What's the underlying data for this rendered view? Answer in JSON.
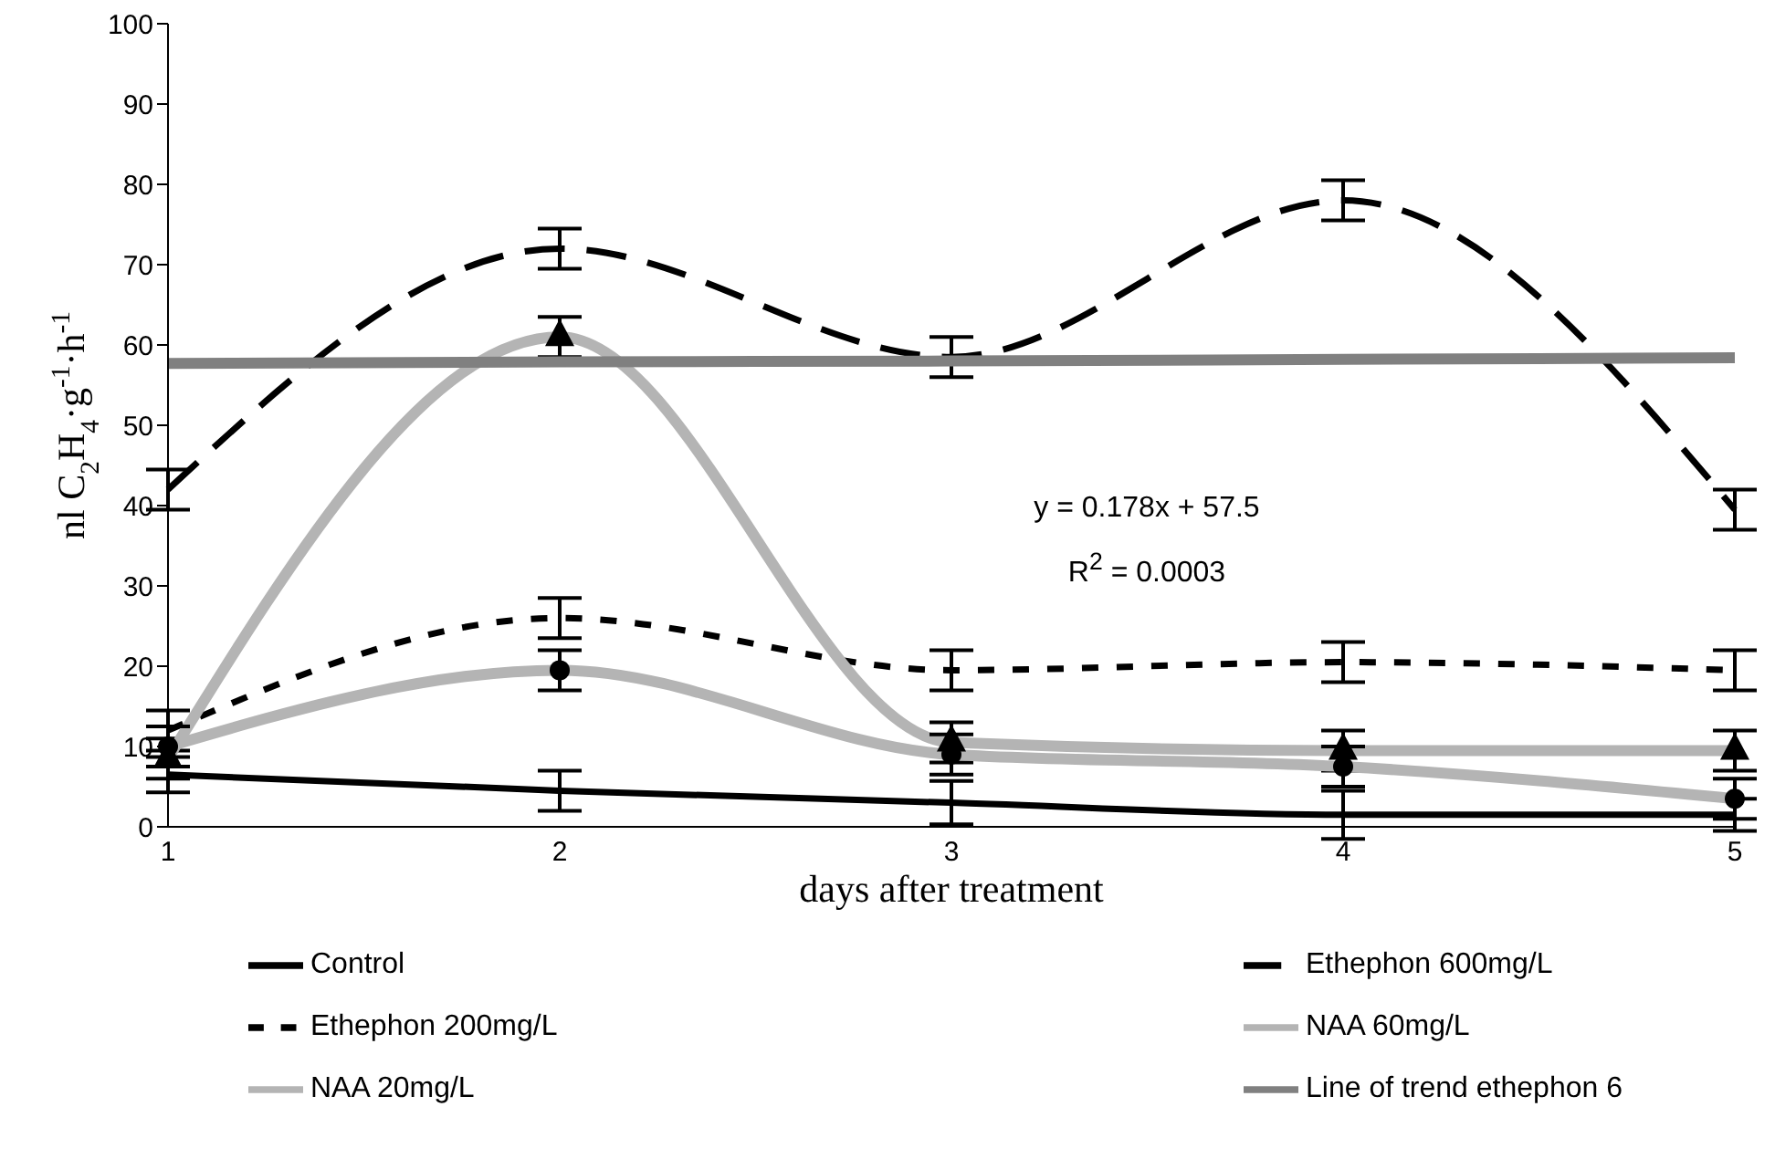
{
  "chart_data": {
    "type": "line",
    "xlabel": "days after treatment",
    "ylabel": "nl C$_{2}$H$_{4}$·g$^{-1}$·h$^{-1}$",
    "categories": [
      "1",
      "2",
      "3",
      "4",
      "5"
    ],
    "ylim": [
      0,
      100
    ],
    "yticks": [
      0,
      10,
      20,
      30,
      40,
      50,
      60,
      70,
      80,
      90,
      100
    ],
    "grid": false,
    "legend": "bottom",
    "annotations": [
      "y = 0.178x + 57.5",
      "R$^{2}$ = 0.0003"
    ],
    "series": [
      {
        "name": "Control",
        "color": "#000000",
        "line_style": "solid",
        "marker": "none",
        "values": [
          6.5,
          4.5,
          3,
          1.5,
          1.5
        ],
        "errors": [
          2.2,
          2.5,
          2.7,
          3,
          2
        ]
      },
      {
        "name": "Ethephon 600mg/L",
        "color": "#000000",
        "line_style": "dashed",
        "marker": "none",
        "values": [
          42,
          72,
          58.5,
          78,
          39.5
        ],
        "errors": [
          2.5,
          2.5,
          2.5,
          2.5,
          2.5
        ]
      },
      {
        "name": "Ethephon 200mg/L",
        "color": "#000000",
        "line_style": "dotted",
        "marker": "none",
        "values": [
          12,
          26,
          19.5,
          20.5,
          19.5
        ],
        "errors": [
          2.5,
          2.5,
          2.5,
          2.5,
          2.5
        ]
      },
      {
        "name": "NAA 60mg/L",
        "color": "#b4b4b4",
        "line_style": "solid",
        "marker": "triangle",
        "values": [
          8.5,
          61,
          10.5,
          9.5,
          9.5
        ],
        "errors": [
          2.5,
          2.5,
          2.5,
          2.5,
          2.5
        ]
      },
      {
        "name": "NAA 20mg/L",
        "color": "#b4b4b4",
        "line_style": "solid",
        "marker": "circle",
        "values": [
          10,
          19.5,
          9,
          7.5,
          3.5
        ],
        "errors": [
          2.5,
          2.5,
          2.5,
          2.5,
          2.5
        ]
      },
      {
        "name": "Line of trend ethephon 6",
        "color": "#808080",
        "line_style": "solid",
        "marker": "none",
        "values": [
          57.7,
          57.9,
          58,
          58.2,
          58.4
        ]
      }
    ]
  }
}
